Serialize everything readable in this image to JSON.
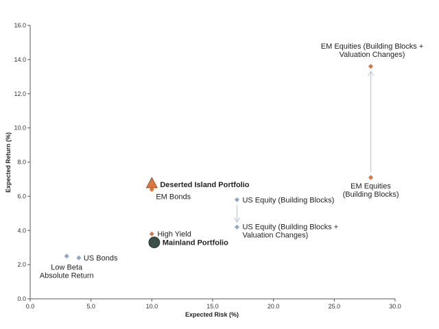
{
  "chart_data": {
    "type": "scatter",
    "xlabel": "Expected Risk (%)",
    "ylabel": "Expected Return (%)",
    "xlim": [
      0,
      30
    ],
    "ylim": [
      0,
      16
    ],
    "x_ticks": [
      "0.0",
      "5.0",
      "10.0",
      "15.0",
      "20.0",
      "25.0",
      "30.0"
    ],
    "y_ticks": [
      "0.0",
      "2.0",
      "4.0",
      "6.0",
      "8.0",
      "10.0",
      "12.0",
      "14.0",
      "16.0"
    ],
    "grid": false,
    "colors": {
      "blue_marker": "#8ea6c8",
      "orange_marker": "#d9773e",
      "dark_marker": "#3a4f47",
      "orange_label": "#d9773e",
      "dark_label": "#3a5a4f",
      "arrow": "#bcc8d8",
      "axis": "#555555"
    },
    "points": [
      {
        "id": "low-beta",
        "x": 3.0,
        "y": 2.5,
        "marker": "diamond",
        "color": "blue_marker",
        "label": [
          "Low Beta",
          "Absolute Return"
        ]
      },
      {
        "id": "us-bonds",
        "x": 4.0,
        "y": 2.4,
        "marker": "diamond",
        "color": "blue_marker",
        "label": [
          "US Bonds"
        ]
      },
      {
        "id": "em-bonds",
        "x": 10.0,
        "y": 6.4,
        "marker": "diamond",
        "color": "orange_marker",
        "label": [
          "EM Bonds"
        ]
      },
      {
        "id": "high-yield",
        "x": 10.0,
        "y": 3.8,
        "marker": "diamond",
        "color": "orange_marker",
        "label": [
          "High Yield"
        ]
      },
      {
        "id": "us-equity-bb",
        "x": 17.0,
        "y": 5.8,
        "marker": "diamond",
        "color": "blue_marker",
        "label": [
          "US Equity (Building Blocks)"
        ]
      },
      {
        "id": "us-equity-vc",
        "x": 17.0,
        "y": 4.2,
        "marker": "diamond",
        "color": "blue_marker",
        "label": [
          "US Equity (Building Blocks +",
          "Valuation Changes)"
        ]
      },
      {
        "id": "em-equities-bb",
        "x": 28.0,
        "y": 7.1,
        "marker": "diamond",
        "color": "orange_marker",
        "label": [
          "EM Equities",
          "(Building Blocks)"
        ]
      },
      {
        "id": "em-equities-vc",
        "x": 28.0,
        "y": 13.6,
        "marker": "diamond",
        "color": "orange_marker",
        "label": [
          "EM Equities (Building Blocks +",
          "Valuation Changes)"
        ]
      },
      {
        "id": "deserted-island",
        "x": 10.0,
        "y": 6.7,
        "marker": "triangle",
        "color": "orange_marker",
        "label": [
          "Deserted Island Portfolio"
        ],
        "label_color": "orange_label",
        "bold": true
      },
      {
        "id": "mainland",
        "x": 10.2,
        "y": 3.3,
        "marker": "circle",
        "color": "dark_marker",
        "label": [
          "Mainland Portfolio"
        ],
        "label_color": "dark_label",
        "bold": true
      }
    ],
    "arrows": [
      {
        "from": [
          17.0,
          5.8
        ],
        "to": [
          17.0,
          4.2
        ]
      },
      {
        "from": [
          28.0,
          7.1
        ],
        "to": [
          28.0,
          13.6
        ]
      }
    ]
  }
}
